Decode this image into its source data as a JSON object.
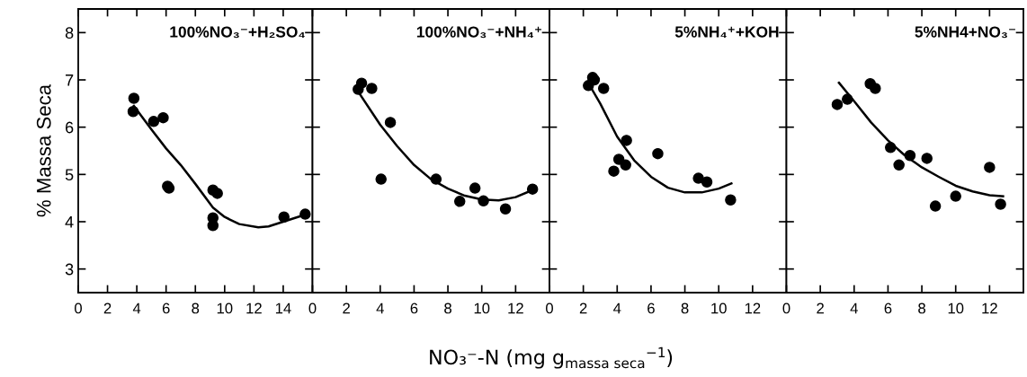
{
  "chart_data": [
    {
      "type": "scatter",
      "title": "100%NO₃⁻+H₂SO₄",
      "ylabel": "% Massa Seca",
      "xlabel": "NO₃⁻-N (mg g$_{massa seca}$$^{−1}$)",
      "xlim": [
        0,
        16
      ],
      "xticks": [
        0,
        2,
        4,
        6,
        8,
        10,
        12,
        14
      ],
      "ylim": [
        2.5,
        8.5
      ],
      "yticks": [
        3,
        4,
        5,
        6,
        7,
        8
      ],
      "series": [
        {
          "marker": "circle",
          "color": "#000000",
          "x": [
            3.8,
            3.75,
            5.15,
            5.8,
            6.2,
            6.1,
            9.2,
            9.5,
            9.2,
            9.2,
            14.05,
            15.5
          ],
          "values": [
            6.61,
            6.33,
            6.12,
            6.2,
            4.71,
            4.75,
            4.67,
            4.6,
            4.08,
            3.92,
            4.1,
            4.16
          ]
        },
        {
          "type": "line",
          "color": "#000000",
          "x": [
            3.8,
            5,
            6,
            7,
            8,
            9.2,
            10,
            11,
            12.3,
            13,
            14,
            15.5
          ],
          "values": [
            6.45,
            5.95,
            5.55,
            5.2,
            4.8,
            4.3,
            4.1,
            3.95,
            3.88,
            3.9,
            4.0,
            4.15
          ]
        }
      ]
    },
    {
      "type": "scatter",
      "title": "100%NO₃⁻+NH₄⁺",
      "xlim": [
        0,
        14
      ],
      "xticks": [
        0,
        2,
        4,
        6,
        8,
        10,
        12
      ],
      "ylim": [
        2.5,
        8.5
      ],
      "yticks": [
        {
          "value": 3,
          "label": null
        },
        {
          "value": 4,
          "label": null
        },
        {
          "value": 5,
          "label": null
        },
        {
          "value": 6,
          "label": null
        },
        {
          "value": 7,
          "label": null
        },
        {
          "value": 8,
          "label": null
        }
      ],
      "tick_labels": "x",
      "series": [
        {
          "marker": "circle",
          "color": "#000000",
          "x": [
            2.7,
            2.9,
            3.5,
            4.6,
            4.05,
            7.3,
            8.7,
            9.6,
            10.1,
            11.4,
            13.0
          ],
          "values": [
            6.8,
            6.93,
            6.82,
            6.1,
            4.9,
            4.9,
            4.43,
            4.71,
            4.44,
            4.27,
            4.69
          ]
        },
        {
          "type": "line",
          "color": "#000000",
          "x": [
            2.7,
            4,
            5,
            6,
            7,
            8,
            9,
            10,
            11,
            12,
            13
          ],
          "values": [
            6.75,
            6.05,
            5.6,
            5.2,
            4.9,
            4.7,
            4.55,
            4.47,
            4.45,
            4.52,
            4.67
          ]
        }
      ]
    },
    {
      "type": "scatter",
      "title": "5%NH₄⁺+KOH",
      "xlim": [
        0,
        14
      ],
      "xticks": [
        0,
        2,
        4,
        6,
        8,
        10,
        12
      ],
      "ylim": [
        2.5,
        8.5
      ],
      "yticks": [
        {
          "value": 3,
          "label": null
        },
        {
          "value": 4,
          "label": null
        },
        {
          "value": 5,
          "label": null
        },
        {
          "value": 6,
          "label": null
        },
        {
          "value": 7,
          "label": null
        },
        {
          "value": 8,
          "label": null
        }
      ],
      "tick_labels": "x",
      "series": [
        {
          "marker": "circle",
          "color": "#000000",
          "x": [
            2.3,
            2.55,
            2.65,
            3.2,
            4.55,
            4.1,
            4.5,
            3.8,
            6.4,
            8.8,
            9.3,
            10.7
          ],
          "values": [
            6.88,
            7.05,
            7.0,
            6.82,
            5.72,
            5.32,
            5.2,
            5.07,
            5.44,
            4.92,
            4.84,
            4.46
          ]
        },
        {
          "type": "line",
          "color": "#000000",
          "x": [
            2.35,
            3,
            4,
            5,
            6,
            7,
            8,
            9,
            10,
            10.75
          ],
          "values": [
            6.9,
            6.5,
            5.8,
            5.3,
            4.95,
            4.72,
            4.62,
            4.62,
            4.7,
            4.81
          ]
        }
      ]
    },
    {
      "type": "scatter",
      "title": "5%NH4+NO₃⁻",
      "xlim": [
        0,
        14
      ],
      "xticks": [
        0,
        2,
        4,
        6,
        8,
        10,
        12
      ],
      "ylim": [
        2.5,
        8.5
      ],
      "yticks": [
        {
          "value": 3,
          "label": null
        },
        {
          "value": 4,
          "label": null
        },
        {
          "value": 5,
          "label": null
        },
        {
          "value": 6,
          "label": null
        },
        {
          "value": 7,
          "label": null
        },
        {
          "value": 8,
          "label": null
        }
      ],
      "tick_labels": "x",
      "series": [
        {
          "marker": "circle",
          "color": "#000000",
          "x": [
            3.0,
            3.6,
            4.95,
            5.25,
            6.15,
            6.65,
            7.3,
            8.3,
            8.8,
            10.0,
            12.0,
            12.65
          ],
          "values": [
            6.48,
            6.59,
            6.92,
            6.82,
            5.57,
            5.2,
            5.4,
            5.34,
            4.33,
            4.54,
            5.15,
            4.37
          ]
        },
        {
          "type": "line",
          "color": "#000000",
          "x": [
            3.1,
            4,
            5,
            6,
            7,
            8,
            9,
            10,
            11,
            12,
            12.8
          ],
          "values": [
            6.94,
            6.55,
            6.1,
            5.72,
            5.4,
            5.15,
            4.95,
            4.76,
            4.64,
            4.56,
            4.54
          ]
        }
      ]
    }
  ]
}
